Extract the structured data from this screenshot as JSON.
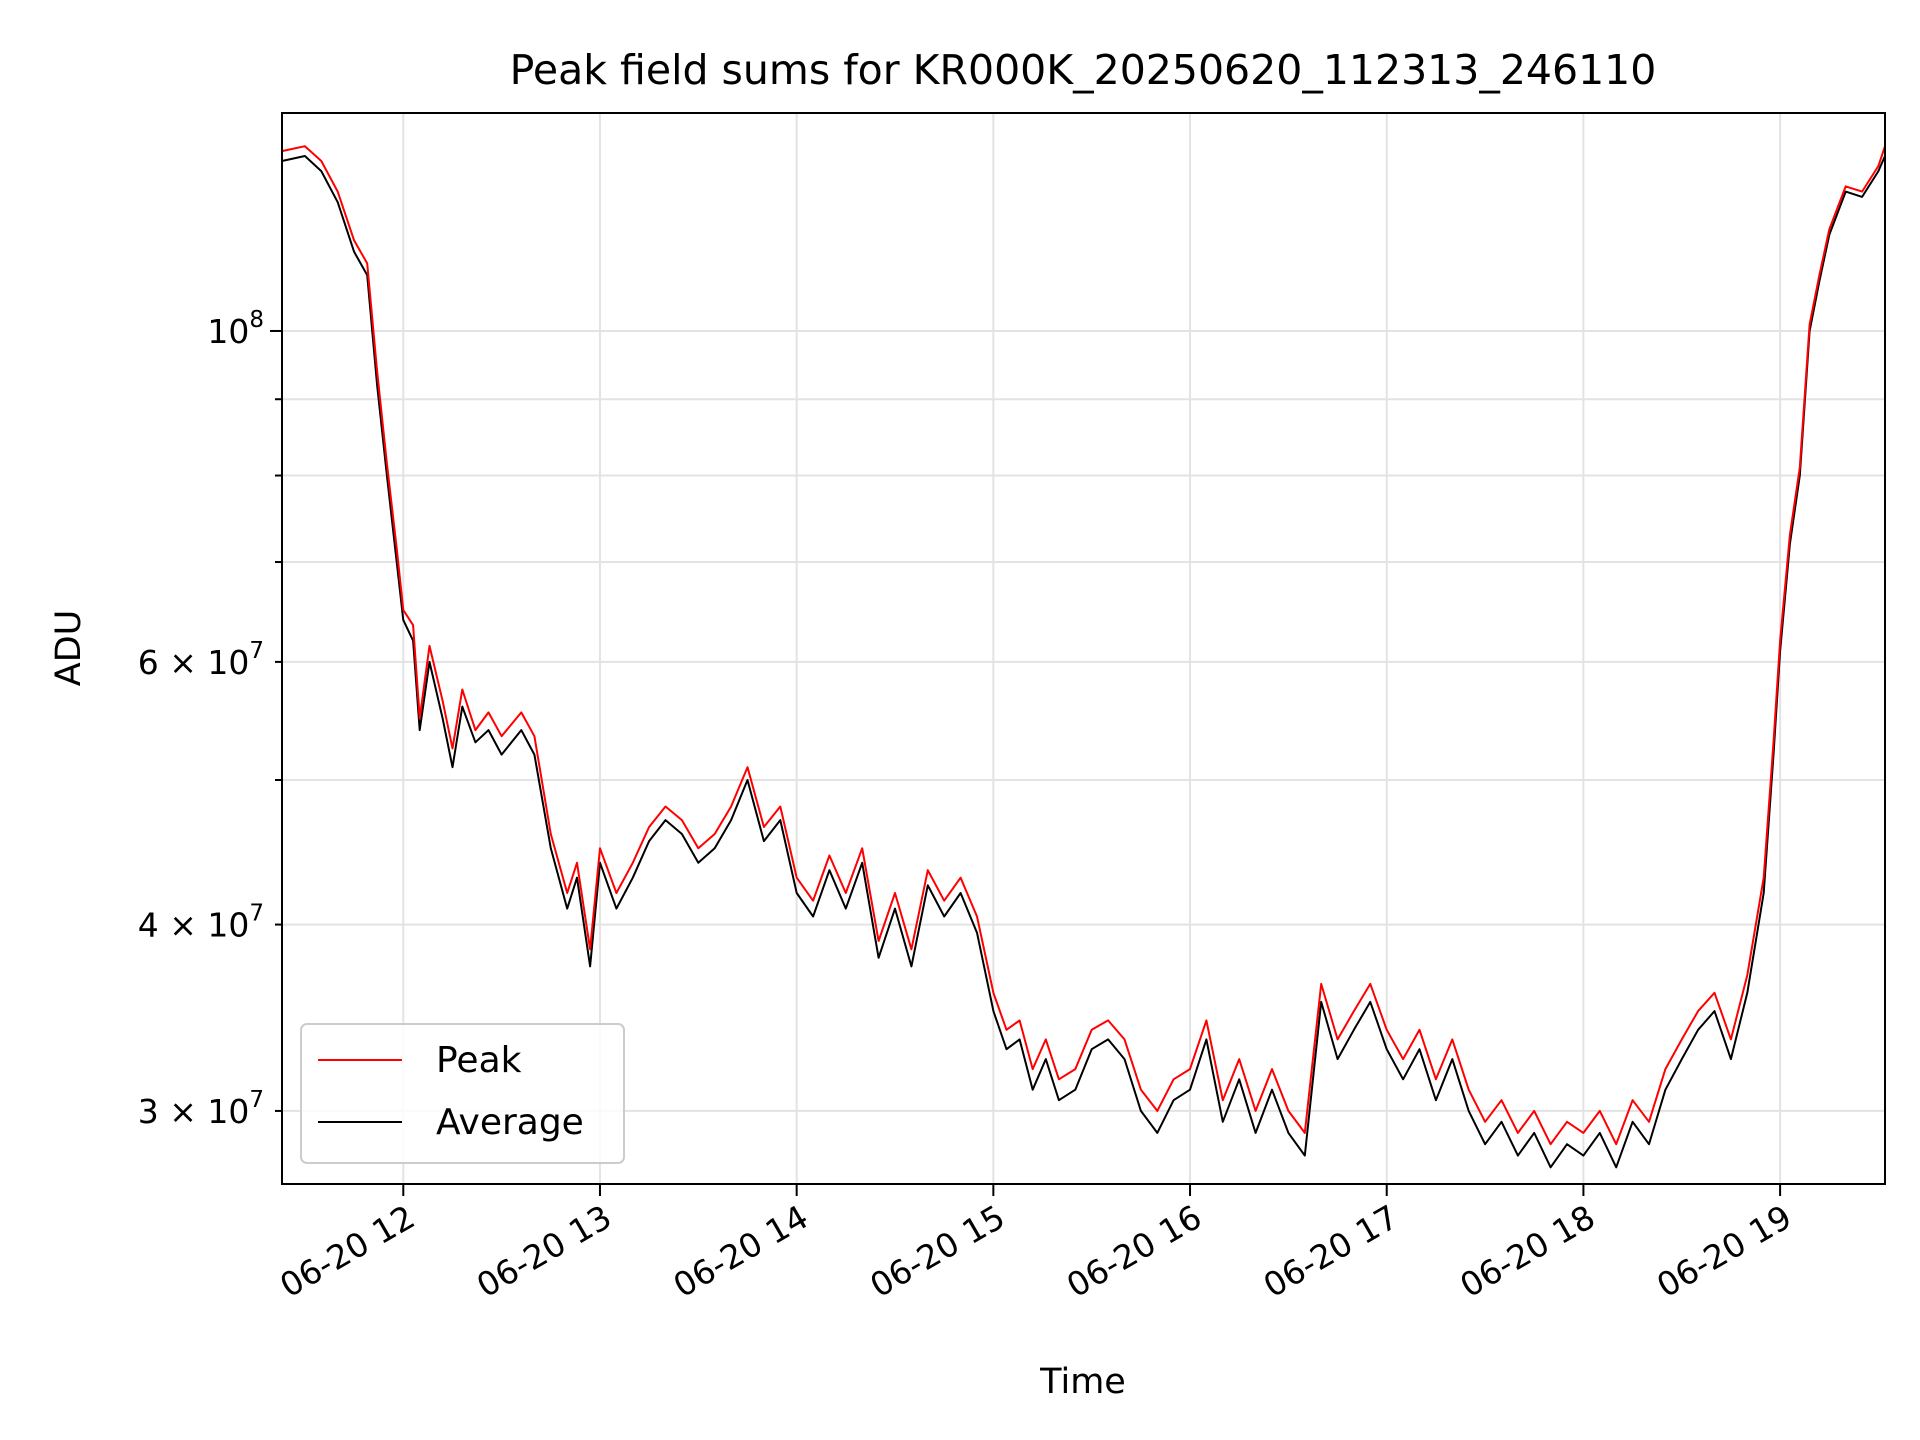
{
  "chart_data": {
    "type": "line",
    "title": "Peak field sums for KR000K_20250620_112313_246110",
    "xlabel": "Time",
    "ylabel": "ADU",
    "y_scale": "log",
    "ylim": [
      26800000,
      140000000
    ],
    "xlim": [
      "2025-06-20 11:23",
      "2025-06-20 19:32"
    ],
    "grid": true,
    "legend_position": "lower-left",
    "x_tick_labels": [
      "06-20 12",
      "06-20 13",
      "06-20 14",
      "06-20 15",
      "06-20 16",
      "06-20 17",
      "06-20 18",
      "06-20 19"
    ],
    "x_tick_values": [
      "2025-06-20 12:00",
      "2025-06-20 13:00",
      "2025-06-20 14:00",
      "2025-06-20 15:00",
      "2025-06-20 16:00",
      "2025-06-20 17:00",
      "2025-06-20 18:00",
      "2025-06-20 19:00"
    ],
    "y_major_ticks": [
      {
        "value": 100000000,
        "base": "10",
        "exp": "8",
        "mantissa": ""
      }
    ],
    "y_minor_ticks": [
      {
        "value": 30000000,
        "mantissa": "3",
        "base": "10",
        "exp": "7"
      },
      {
        "value": 40000000,
        "mantissa": "4",
        "base": "10",
        "exp": "7"
      },
      {
        "value": 60000000,
        "mantissa": "6",
        "base": "10",
        "exp": "7"
      }
    ],
    "y_unlabeled_minor_ticks": [
      50000000,
      70000000,
      80000000,
      90000000
    ],
    "series": [
      {
        "name": "Average",
        "color": "#000000",
        "points": [
          [
            "2025-06-20 11:23",
            130000000
          ],
          [
            "2025-06-20 11:30",
            131000000
          ],
          [
            "2025-06-20 11:35",
            128000000
          ],
          [
            "2025-06-20 11:40",
            122000000
          ],
          [
            "2025-06-20 11:45",
            113000000
          ],
          [
            "2025-06-20 11:49",
            109000000
          ],
          [
            "2025-06-20 11:52",
            92000000
          ],
          [
            "2025-06-20 11:55",
            80000000
          ],
          [
            "2025-06-20 11:58",
            70000000
          ],
          [
            "2025-06-20 12:00",
            64000000
          ],
          [
            "2025-06-20 12:03",
            62000000
          ],
          [
            "2025-06-20 12:05",
            54000000
          ],
          [
            "2025-06-20 12:08",
            60000000
          ],
          [
            "2025-06-20 12:12",
            55000000
          ],
          [
            "2025-06-20 12:15",
            51000000
          ],
          [
            "2025-06-20 12:18",
            56000000
          ],
          [
            "2025-06-20 12:22",
            53000000
          ],
          [
            "2025-06-20 12:26",
            54000000
          ],
          [
            "2025-06-20 12:30",
            52000000
          ],
          [
            "2025-06-20 12:36",
            54000000
          ],
          [
            "2025-06-20 12:40",
            52000000
          ],
          [
            "2025-06-20 12:45",
            45000000
          ],
          [
            "2025-06-20 12:50",
            41000000
          ],
          [
            "2025-06-20 12:53",
            43000000
          ],
          [
            "2025-06-20 12:57",
            37500000
          ],
          [
            "2025-06-20 13:00",
            44000000
          ],
          [
            "2025-06-20 13:05",
            41000000
          ],
          [
            "2025-06-20 13:10",
            43000000
          ],
          [
            "2025-06-20 13:15",
            45500000
          ],
          [
            "2025-06-20 13:20",
            47000000
          ],
          [
            "2025-06-20 13:25",
            46000000
          ],
          [
            "2025-06-20 13:30",
            44000000
          ],
          [
            "2025-06-20 13:35",
            45000000
          ],
          [
            "2025-06-20 13:40",
            47000000
          ],
          [
            "2025-06-20 13:45",
            50000000
          ],
          [
            "2025-06-20 13:50",
            45500000
          ],
          [
            "2025-06-20 13:55",
            47000000
          ],
          [
            "2025-06-20 14:00",
            42000000
          ],
          [
            "2025-06-20 14:05",
            40500000
          ],
          [
            "2025-06-20 14:10",
            43500000
          ],
          [
            "2025-06-20 14:15",
            41000000
          ],
          [
            "2025-06-20 14:20",
            44000000
          ],
          [
            "2025-06-20 14:25",
            38000000
          ],
          [
            "2025-06-20 14:30",
            41000000
          ],
          [
            "2025-06-20 14:35",
            37500000
          ],
          [
            "2025-06-20 14:40",
            42500000
          ],
          [
            "2025-06-20 14:45",
            40500000
          ],
          [
            "2025-06-20 14:50",
            42000000
          ],
          [
            "2025-06-20 14:55",
            39500000
          ],
          [
            "2025-06-20 15:00",
            35000000
          ],
          [
            "2025-06-20 15:04",
            33000000
          ],
          [
            "2025-06-20 15:08",
            33500000
          ],
          [
            "2025-06-20 15:12",
            31000000
          ],
          [
            "2025-06-20 15:16",
            32500000
          ],
          [
            "2025-06-20 15:20",
            30500000
          ],
          [
            "2025-06-20 15:25",
            31000000
          ],
          [
            "2025-06-20 15:30",
            33000000
          ],
          [
            "2025-06-20 15:35",
            33500000
          ],
          [
            "2025-06-20 15:40",
            32500000
          ],
          [
            "2025-06-20 15:45",
            30000000
          ],
          [
            "2025-06-20 15:50",
            29000000
          ],
          [
            "2025-06-20 15:55",
            30500000
          ],
          [
            "2025-06-20 16:00",
            31000000
          ],
          [
            "2025-06-20 16:05",
            33500000
          ],
          [
            "2025-06-20 16:10",
            29500000
          ],
          [
            "2025-06-20 16:15",
            31500000
          ],
          [
            "2025-06-20 16:20",
            29000000
          ],
          [
            "2025-06-20 16:25",
            31000000
          ],
          [
            "2025-06-20 16:30",
            29000000
          ],
          [
            "2025-06-20 16:35",
            28000000
          ],
          [
            "2025-06-20 16:40",
            35500000
          ],
          [
            "2025-06-20 16:45",
            32500000
          ],
          [
            "2025-06-20 16:50",
            34000000
          ],
          [
            "2025-06-20 16:55",
            35500000
          ],
          [
            "2025-06-20 17:00",
            33000000
          ],
          [
            "2025-06-20 17:05",
            31500000
          ],
          [
            "2025-06-20 17:10",
            33000000
          ],
          [
            "2025-06-20 17:15",
            30500000
          ],
          [
            "2025-06-20 17:20",
            32500000
          ],
          [
            "2025-06-20 17:25",
            30000000
          ],
          [
            "2025-06-20 17:30",
            28500000
          ],
          [
            "2025-06-20 17:35",
            29500000
          ],
          [
            "2025-06-20 17:40",
            28000000
          ],
          [
            "2025-06-20 17:45",
            29000000
          ],
          [
            "2025-06-20 17:50",
            27500000
          ],
          [
            "2025-06-20 17:55",
            28500000
          ],
          [
            "2025-06-20 18:00",
            28000000
          ],
          [
            "2025-06-20 18:05",
            29000000
          ],
          [
            "2025-06-20 18:10",
            27500000
          ],
          [
            "2025-06-20 18:15",
            29500000
          ],
          [
            "2025-06-20 18:20",
            28500000
          ],
          [
            "2025-06-20 18:25",
            31000000
          ],
          [
            "2025-06-20 18:30",
            32500000
          ],
          [
            "2025-06-20 18:35",
            34000000
          ],
          [
            "2025-06-20 18:40",
            35000000
          ],
          [
            "2025-06-20 18:45",
            32500000
          ],
          [
            "2025-06-20 18:50",
            36000000
          ],
          [
            "2025-06-20 18:55",
            42000000
          ],
          [
            "2025-06-20 18:58",
            52000000
          ],
          [
            "2025-06-20 19:00",
            61000000
          ],
          [
            "2025-06-20 19:03",
            72000000
          ],
          [
            "2025-06-20 19:06",
            80000000
          ],
          [
            "2025-06-20 19:09",
            100000000
          ],
          [
            "2025-06-20 19:12",
            108000000
          ],
          [
            "2025-06-20 19:15",
            116000000
          ],
          [
            "2025-06-20 19:20",
            124000000
          ],
          [
            "2025-06-20 19:25",
            123000000
          ],
          [
            "2025-06-20 19:30",
            128000000
          ],
          [
            "2025-06-20 19:32",
            131000000
          ]
        ]
      },
      {
        "name": "Peak",
        "color": "#ff0000",
        "points": [
          [
            "2025-06-20 11:23",
            132000000
          ],
          [
            "2025-06-20 11:30",
            133000000
          ],
          [
            "2025-06-20 11:35",
            130000000
          ],
          [
            "2025-06-20 11:40",
            124000000
          ],
          [
            "2025-06-20 11:45",
            115000000
          ],
          [
            "2025-06-20 11:49",
            111000000
          ],
          [
            "2025-06-20 11:52",
            94000000
          ],
          [
            "2025-06-20 11:55",
            81500000
          ],
          [
            "2025-06-20 11:58",
            71500000
          ],
          [
            "2025-06-20 12:00",
            65000000
          ],
          [
            "2025-06-20 12:03",
            63500000
          ],
          [
            "2025-06-20 12:05",
            55000000
          ],
          [
            "2025-06-20 12:08",
            61500000
          ],
          [
            "2025-06-20 12:12",
            56500000
          ],
          [
            "2025-06-20 12:15",
            52500000
          ],
          [
            "2025-06-20 12:18",
            57500000
          ],
          [
            "2025-06-20 12:22",
            54000000
          ],
          [
            "2025-06-20 12:26",
            55500000
          ],
          [
            "2025-06-20 12:30",
            53500000
          ],
          [
            "2025-06-20 12:36",
            55500000
          ],
          [
            "2025-06-20 12:40",
            53500000
          ],
          [
            "2025-06-20 12:45",
            46000000
          ],
          [
            "2025-06-20 12:50",
            42000000
          ],
          [
            "2025-06-20 12:53",
            44000000
          ],
          [
            "2025-06-20 12:57",
            38500000
          ],
          [
            "2025-06-20 13:00",
            45000000
          ],
          [
            "2025-06-20 13:05",
            42000000
          ],
          [
            "2025-06-20 13:10",
            44000000
          ],
          [
            "2025-06-20 13:15",
            46500000
          ],
          [
            "2025-06-20 13:20",
            48000000
          ],
          [
            "2025-06-20 13:25",
            47000000
          ],
          [
            "2025-06-20 13:30",
            45000000
          ],
          [
            "2025-06-20 13:35",
            46000000
          ],
          [
            "2025-06-20 13:40",
            48000000
          ],
          [
            "2025-06-20 13:45",
            51000000
          ],
          [
            "2025-06-20 13:50",
            46500000
          ],
          [
            "2025-06-20 13:55",
            48000000
          ],
          [
            "2025-06-20 14:00",
            43000000
          ],
          [
            "2025-06-20 14:05",
            41500000
          ],
          [
            "2025-06-20 14:10",
            44500000
          ],
          [
            "2025-06-20 14:15",
            42000000
          ],
          [
            "2025-06-20 14:20",
            45000000
          ],
          [
            "2025-06-20 14:25",
            39000000
          ],
          [
            "2025-06-20 14:30",
            42000000
          ],
          [
            "2025-06-20 14:35",
            38500000
          ],
          [
            "2025-06-20 14:40",
            43500000
          ],
          [
            "2025-06-20 14:45",
            41500000
          ],
          [
            "2025-06-20 14:50",
            43000000
          ],
          [
            "2025-06-20 14:55",
            40500000
          ],
          [
            "2025-06-20 15:00",
            36000000
          ],
          [
            "2025-06-20 15:04",
            34000000
          ],
          [
            "2025-06-20 15:08",
            34500000
          ],
          [
            "2025-06-20 15:12",
            32000000
          ],
          [
            "2025-06-20 15:16",
            33500000
          ],
          [
            "2025-06-20 15:20",
            31500000
          ],
          [
            "2025-06-20 15:25",
            32000000
          ],
          [
            "2025-06-20 15:30",
            34000000
          ],
          [
            "2025-06-20 15:35",
            34500000
          ],
          [
            "2025-06-20 15:40",
            33500000
          ],
          [
            "2025-06-20 15:45",
            31000000
          ],
          [
            "2025-06-20 15:50",
            30000000
          ],
          [
            "2025-06-20 15:55",
            31500000
          ],
          [
            "2025-06-20 16:00",
            32000000
          ],
          [
            "2025-06-20 16:05",
            34500000
          ],
          [
            "2025-06-20 16:10",
            30500000
          ],
          [
            "2025-06-20 16:15",
            32500000
          ],
          [
            "2025-06-20 16:20",
            30000000
          ],
          [
            "2025-06-20 16:25",
            32000000
          ],
          [
            "2025-06-20 16:30",
            30000000
          ],
          [
            "2025-06-20 16:35",
            29000000
          ],
          [
            "2025-06-20 16:40",
            36500000
          ],
          [
            "2025-06-20 16:45",
            33500000
          ],
          [
            "2025-06-20 16:50",
            35000000
          ],
          [
            "2025-06-20 16:55",
            36500000
          ],
          [
            "2025-06-20 17:00",
            34000000
          ],
          [
            "2025-06-20 17:05",
            32500000
          ],
          [
            "2025-06-20 17:10",
            34000000
          ],
          [
            "2025-06-20 17:15",
            31500000
          ],
          [
            "2025-06-20 17:20",
            33500000
          ],
          [
            "2025-06-20 17:25",
            31000000
          ],
          [
            "2025-06-20 17:30",
            29500000
          ],
          [
            "2025-06-20 17:35",
            30500000
          ],
          [
            "2025-06-20 17:40",
            29000000
          ],
          [
            "2025-06-20 17:45",
            30000000
          ],
          [
            "2025-06-20 17:50",
            28500000
          ],
          [
            "2025-06-20 17:55",
            29500000
          ],
          [
            "2025-06-20 18:00",
            29000000
          ],
          [
            "2025-06-20 18:05",
            30000000
          ],
          [
            "2025-06-20 18:10",
            28500000
          ],
          [
            "2025-06-20 18:15",
            30500000
          ],
          [
            "2025-06-20 18:20",
            29500000
          ],
          [
            "2025-06-20 18:25",
            32000000
          ],
          [
            "2025-06-20 18:30",
            33500000
          ],
          [
            "2025-06-20 18:35",
            35000000
          ],
          [
            "2025-06-20 18:40",
            36000000
          ],
          [
            "2025-06-20 18:45",
            33500000
          ],
          [
            "2025-06-20 18:50",
            37000000
          ],
          [
            "2025-06-20 18:55",
            43000000
          ],
          [
            "2025-06-20 18:58",
            53000000
          ],
          [
            "2025-06-20 19:00",
            62000000
          ],
          [
            "2025-06-20 19:03",
            73000000
          ],
          [
            "2025-06-20 19:06",
            81000000
          ],
          [
            "2025-06-20 19:09",
            101000000
          ],
          [
            "2025-06-20 19:12",
            109000000
          ],
          [
            "2025-06-20 19:15",
            117000000
          ],
          [
            "2025-06-20 19:20",
            125000000
          ],
          [
            "2025-06-20 19:25",
            124000000
          ],
          [
            "2025-06-20 19:30",
            129000000
          ],
          [
            "2025-06-20 19:32",
            133000000
          ]
        ]
      }
    ],
    "legend_entries": [
      {
        "label": "Peak",
        "color": "#ff0000"
      },
      {
        "label": "Average",
        "color": "#000000"
      }
    ]
  }
}
